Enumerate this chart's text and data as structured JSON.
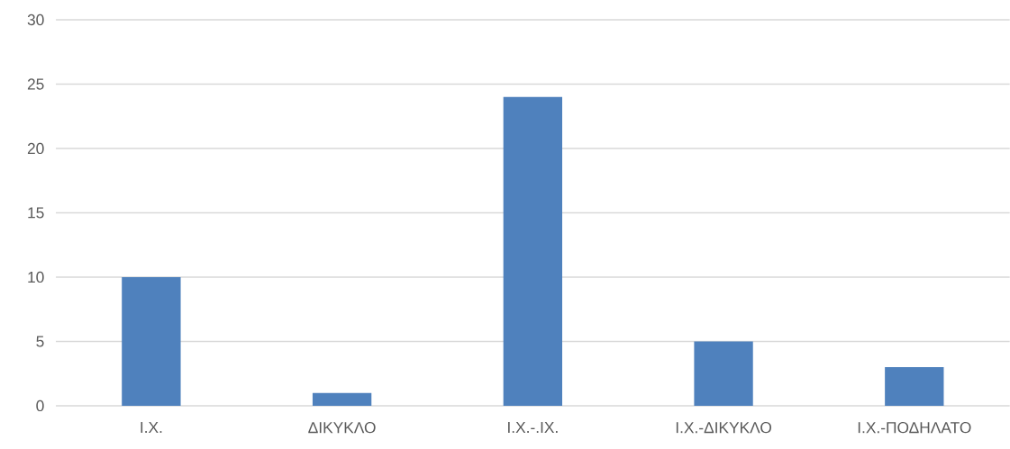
{
  "chart_data": {
    "type": "bar",
    "categories": [
      "Ι.Χ.",
      "ΔΙΚΥΚΛΟ",
      "Ι.Χ.-.ΙΧ.",
      "Ι.Χ.-ΔΙΚΥΚΛΟ",
      "Ι.Χ.-ΠΟΔΗΛΑΤΟ"
    ],
    "values": [
      10,
      1,
      24,
      5,
      3
    ],
    "color": "#4f81bd",
    "ylim": [
      0,
      30
    ],
    "yticks": [
      0,
      5,
      10,
      15,
      20,
      25,
      30
    ],
    "grid": "y"
  }
}
